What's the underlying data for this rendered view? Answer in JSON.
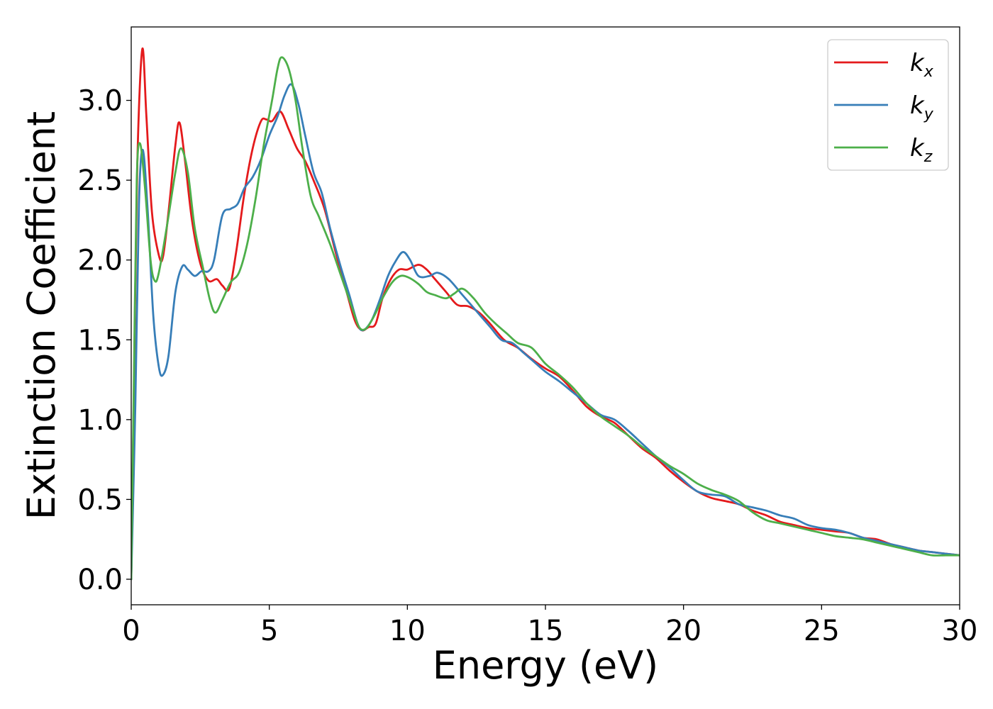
{
  "chart_data": {
    "type": "line",
    "xlabel": "Energy (eV)",
    "ylabel": "Extinction Coefficient",
    "xlim": [
      0,
      30
    ],
    "ylim": [
      -0.16,
      3.46
    ],
    "xticks": [
      0,
      5,
      10,
      15,
      20,
      25,
      30
    ],
    "xtick_labels": [
      "0",
      "5",
      "10",
      "15",
      "20",
      "25",
      "30"
    ],
    "yticks": [
      0.0,
      0.5,
      1.0,
      1.5,
      2.0,
      2.5,
      3.0
    ],
    "ytick_labels": [
      "0.0",
      "0.5",
      "1.0",
      "1.5",
      "2.0",
      "2.5",
      "3.0"
    ],
    "grid": false,
    "legend_position": "top-right",
    "series": [
      {
        "name": "k",
        "subscript": "x",
        "color": "#e41a1c",
        "points": [
          [
            0,
            0.0
          ],
          [
            0.1,
            1.2
          ],
          [
            0.22,
            2.6
          ],
          [
            0.4,
            3.32
          ],
          [
            0.55,
            2.9
          ],
          [
            0.75,
            2.3
          ],
          [
            1.0,
            2.03
          ],
          [
            1.15,
            2.02
          ],
          [
            1.35,
            2.3
          ],
          [
            1.6,
            2.72
          ],
          [
            1.75,
            2.86
          ],
          [
            1.95,
            2.62
          ],
          [
            2.2,
            2.25
          ],
          [
            2.5,
            1.98
          ],
          [
            2.8,
            1.87
          ],
          [
            3.1,
            1.88
          ],
          [
            3.3,
            1.84
          ],
          [
            3.55,
            1.82
          ],
          [
            3.8,
            2.05
          ],
          [
            4.1,
            2.42
          ],
          [
            4.4,
            2.7
          ],
          [
            4.7,
            2.87
          ],
          [
            4.9,
            2.88
          ],
          [
            5.1,
            2.87
          ],
          [
            5.4,
            2.93
          ],
          [
            5.7,
            2.82
          ],
          [
            6.0,
            2.7
          ],
          [
            6.3,
            2.62
          ],
          [
            6.6,
            2.5
          ],
          [
            7.0,
            2.32
          ],
          [
            7.4,
            2.05
          ],
          [
            7.8,
            1.8
          ],
          [
            8.1,
            1.62
          ],
          [
            8.35,
            1.56
          ],
          [
            8.6,
            1.58
          ],
          [
            8.85,
            1.6
          ],
          [
            9.1,
            1.76
          ],
          [
            9.4,
            1.88
          ],
          [
            9.7,
            1.94
          ],
          [
            10.0,
            1.94
          ],
          [
            10.4,
            1.97
          ],
          [
            10.7,
            1.94
          ],
          [
            11.0,
            1.88
          ],
          [
            11.4,
            1.8
          ],
          [
            11.8,
            1.72
          ],
          [
            12.2,
            1.71
          ],
          [
            12.6,
            1.67
          ],
          [
            13.0,
            1.6
          ],
          [
            13.5,
            1.5
          ],
          [
            14.0,
            1.45
          ],
          [
            14.5,
            1.38
          ],
          [
            15.0,
            1.32
          ],
          [
            15.5,
            1.27
          ],
          [
            16.0,
            1.18
          ],
          [
            16.5,
            1.08
          ],
          [
            17.0,
            1.02
          ],
          [
            17.5,
            0.98
          ],
          [
            18.0,
            0.9
          ],
          [
            18.5,
            0.82
          ],
          [
            19.0,
            0.76
          ],
          [
            19.5,
            0.68
          ],
          [
            20.0,
            0.61
          ],
          [
            20.5,
            0.55
          ],
          [
            21.0,
            0.51
          ],
          [
            21.5,
            0.49
          ],
          [
            22.0,
            0.47
          ],
          [
            22.5,
            0.43
          ],
          [
            23.0,
            0.4
          ],
          [
            23.5,
            0.36
          ],
          [
            24.0,
            0.34
          ],
          [
            24.5,
            0.32
          ],
          [
            25.0,
            0.31
          ],
          [
            25.5,
            0.3
          ],
          [
            26.0,
            0.29
          ],
          [
            26.5,
            0.26
          ],
          [
            27.0,
            0.25
          ],
          [
            27.5,
            0.22
          ],
          [
            28.0,
            0.2
          ],
          [
            28.5,
            0.18
          ],
          [
            29.0,
            0.17
          ],
          [
            29.5,
            0.16
          ],
          [
            30.0,
            0.15
          ]
        ]
      },
      {
        "name": "k",
        "subscript": "y",
        "color": "#377eb8",
        "points": [
          [
            0,
            0.0
          ],
          [
            0.15,
            1.1
          ],
          [
            0.28,
            2.35
          ],
          [
            0.42,
            2.69
          ],
          [
            0.6,
            2.3
          ],
          [
            0.8,
            1.65
          ],
          [
            1.0,
            1.33
          ],
          [
            1.15,
            1.28
          ],
          [
            1.35,
            1.4
          ],
          [
            1.6,
            1.8
          ],
          [
            1.85,
            1.96
          ],
          [
            2.05,
            1.94
          ],
          [
            2.3,
            1.9
          ],
          [
            2.55,
            1.93
          ],
          [
            2.8,
            1.93
          ],
          [
            3.0,
            2.0
          ],
          [
            3.3,
            2.28
          ],
          [
            3.6,
            2.32
          ],
          [
            3.85,
            2.35
          ],
          [
            4.1,
            2.45
          ],
          [
            4.4,
            2.52
          ],
          [
            4.7,
            2.63
          ],
          [
            5.0,
            2.78
          ],
          [
            5.3,
            2.9
          ],
          [
            5.55,
            3.03
          ],
          [
            5.8,
            3.1
          ],
          [
            6.05,
            2.98
          ],
          [
            6.3,
            2.78
          ],
          [
            6.6,
            2.55
          ],
          [
            6.9,
            2.42
          ],
          [
            7.2,
            2.2
          ],
          [
            7.6,
            1.95
          ],
          [
            7.9,
            1.78
          ],
          [
            8.2,
            1.6
          ],
          [
            8.4,
            1.56
          ],
          [
            8.7,
            1.62
          ],
          [
            9.0,
            1.75
          ],
          [
            9.3,
            1.9
          ],
          [
            9.6,
            2.0
          ],
          [
            9.85,
            2.05
          ],
          [
            10.1,
            2.0
          ],
          [
            10.4,
            1.9
          ],
          [
            10.8,
            1.9
          ],
          [
            11.1,
            1.92
          ],
          [
            11.5,
            1.88
          ],
          [
            12.0,
            1.78
          ],
          [
            12.5,
            1.68
          ],
          [
            13.0,
            1.58
          ],
          [
            13.4,
            1.5
          ],
          [
            13.8,
            1.48
          ],
          [
            14.2,
            1.42
          ],
          [
            14.6,
            1.36
          ],
          [
            15.0,
            1.3
          ],
          [
            15.5,
            1.24
          ],
          [
            16.0,
            1.17
          ],
          [
            16.5,
            1.1
          ],
          [
            17.0,
            1.03
          ],
          [
            17.5,
            1.0
          ],
          [
            18.0,
            0.93
          ],
          [
            18.5,
            0.85
          ],
          [
            19.0,
            0.77
          ],
          [
            19.5,
            0.7
          ],
          [
            20.0,
            0.62
          ],
          [
            20.5,
            0.55
          ],
          [
            21.0,
            0.53
          ],
          [
            21.5,
            0.52
          ],
          [
            22.0,
            0.47
          ],
          [
            22.5,
            0.45
          ],
          [
            23.0,
            0.43
          ],
          [
            23.5,
            0.4
          ],
          [
            24.0,
            0.38
          ],
          [
            24.5,
            0.34
          ],
          [
            25.0,
            0.32
          ],
          [
            25.5,
            0.31
          ],
          [
            26.0,
            0.29
          ],
          [
            26.5,
            0.26
          ],
          [
            27.0,
            0.24
          ],
          [
            27.5,
            0.22
          ],
          [
            28.0,
            0.2
          ],
          [
            28.5,
            0.18
          ],
          [
            29.0,
            0.17
          ],
          [
            29.5,
            0.16
          ],
          [
            30.0,
            0.15
          ]
        ]
      },
      {
        "name": "k",
        "subscript": "z",
        "color": "#4daf4a",
        "points": [
          [
            0,
            0.0
          ],
          [
            0.1,
            1.3
          ],
          [
            0.2,
            2.5
          ],
          [
            0.32,
            2.73
          ],
          [
            0.5,
            2.45
          ],
          [
            0.7,
            2.0
          ],
          [
            0.85,
            1.87
          ],
          [
            1.0,
            1.92
          ],
          [
            1.3,
            2.22
          ],
          [
            1.6,
            2.55
          ],
          [
            1.8,
            2.7
          ],
          [
            2.05,
            2.55
          ],
          [
            2.3,
            2.2
          ],
          [
            2.6,
            1.95
          ],
          [
            2.85,
            1.75
          ],
          [
            3.05,
            1.67
          ],
          [
            3.3,
            1.75
          ],
          [
            3.6,
            1.86
          ],
          [
            3.9,
            1.92
          ],
          [
            4.2,
            2.1
          ],
          [
            4.5,
            2.38
          ],
          [
            4.8,
            2.72
          ],
          [
            5.1,
            3.0
          ],
          [
            5.3,
            3.2
          ],
          [
            5.45,
            3.27
          ],
          [
            5.7,
            3.2
          ],
          [
            5.95,
            3.0
          ],
          [
            6.2,
            2.7
          ],
          [
            6.5,
            2.4
          ],
          [
            6.8,
            2.27
          ],
          [
            7.2,
            2.1
          ],
          [
            7.6,
            1.9
          ],
          [
            8.0,
            1.7
          ],
          [
            8.25,
            1.58
          ],
          [
            8.5,
            1.57
          ],
          [
            8.8,
            1.65
          ],
          [
            9.1,
            1.76
          ],
          [
            9.45,
            1.86
          ],
          [
            9.75,
            1.9
          ],
          [
            10.05,
            1.89
          ],
          [
            10.4,
            1.85
          ],
          [
            10.7,
            1.8
          ],
          [
            11.0,
            1.78
          ],
          [
            11.4,
            1.76
          ],
          [
            11.7,
            1.79
          ],
          [
            12.0,
            1.82
          ],
          [
            12.4,
            1.76
          ],
          [
            12.8,
            1.67
          ],
          [
            13.2,
            1.6
          ],
          [
            13.6,
            1.54
          ],
          [
            14.0,
            1.48
          ],
          [
            14.5,
            1.45
          ],
          [
            15.0,
            1.35
          ],
          [
            15.5,
            1.28
          ],
          [
            16.0,
            1.2
          ],
          [
            16.5,
            1.1
          ],
          [
            17.0,
            1.02
          ],
          [
            17.5,
            0.96
          ],
          [
            18.0,
            0.9
          ],
          [
            18.5,
            0.83
          ],
          [
            19.0,
            0.77
          ],
          [
            19.5,
            0.71
          ],
          [
            20.0,
            0.66
          ],
          [
            20.5,
            0.6
          ],
          [
            21.0,
            0.56
          ],
          [
            21.5,
            0.53
          ],
          [
            22.0,
            0.49
          ],
          [
            22.5,
            0.42
          ],
          [
            23.0,
            0.37
          ],
          [
            23.5,
            0.35
          ],
          [
            24.0,
            0.33
          ],
          [
            24.5,
            0.31
          ],
          [
            25.0,
            0.29
          ],
          [
            25.5,
            0.27
          ],
          [
            26.0,
            0.26
          ],
          [
            26.5,
            0.25
          ],
          [
            27.0,
            0.23
          ],
          [
            27.5,
            0.21
          ],
          [
            28.0,
            0.19
          ],
          [
            28.5,
            0.17
          ],
          [
            29.0,
            0.15
          ],
          [
            29.5,
            0.15
          ],
          [
            30.0,
            0.15
          ]
        ]
      }
    ]
  }
}
